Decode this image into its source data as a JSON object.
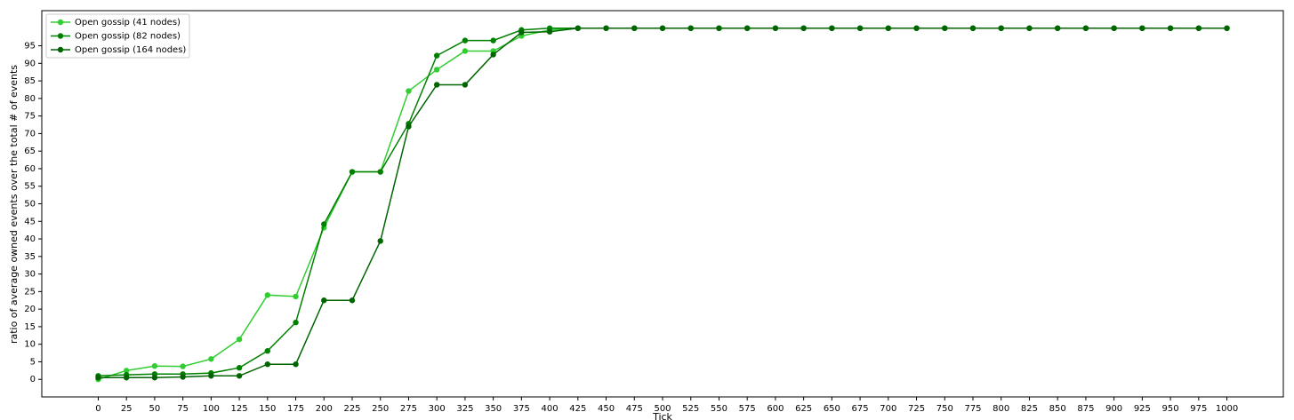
{
  "chart_data": {
    "type": "line",
    "x_label": "Tick",
    "y_label": "ratio of average owned events over the total # of events",
    "x": [
      0,
      25,
      50,
      75,
      100,
      125,
      150,
      175,
      200,
      225,
      250,
      275,
      300,
      325,
      350,
      375,
      400,
      425,
      450,
      475,
      500,
      525,
      550,
      575,
      600,
      625,
      650,
      675,
      700,
      725,
      750,
      775,
      800,
      825,
      850,
      875,
      900,
      925,
      950,
      975,
      1000
    ],
    "series": [
      {
        "name": "Open gossip (41 nodes)",
        "color": "#32cd32",
        "values": [
          0,
          2.5,
          3.8,
          3.7,
          5.8,
          11.4,
          24,
          23.6,
          43.2,
          59.1,
          59.1,
          82.1,
          88.2,
          93.5,
          93.5,
          97.8,
          99.5,
          100,
          100,
          100,
          100,
          100,
          100,
          100,
          100,
          100,
          100,
          100,
          100,
          100,
          100,
          100,
          100,
          100,
          100,
          100,
          100,
          100,
          100,
          100,
          100
        ]
      },
      {
        "name": "Open gossip (82 nodes)",
        "color": "#008000",
        "values": [
          1,
          1.3,
          1.5,
          1.5,
          1.8,
          3.3,
          8.1,
          16.2,
          44.2,
          59.1,
          59.1,
          72.8,
          92.2,
          96.5,
          96.5,
          99.5,
          100,
          100,
          100,
          100,
          100,
          100,
          100,
          100,
          100,
          100,
          100,
          100,
          100,
          100,
          100,
          100,
          100,
          100,
          100,
          100,
          100,
          100,
          100,
          100,
          100
        ]
      },
      {
        "name": "Open gossip (164 nodes)",
        "color": "#006400",
        "values": [
          0.5,
          0.5,
          0.5,
          0.7,
          1,
          1,
          4.3,
          4.3,
          22.5,
          22.5,
          39.4,
          72,
          83.9,
          83.9,
          92.5,
          98.8,
          99,
          100,
          100,
          100,
          100,
          100,
          100,
          100,
          100,
          100,
          100,
          100,
          100,
          100,
          100,
          100,
          100,
          100,
          100,
          100,
          100,
          100,
          100,
          100,
          100
        ]
      }
    ],
    "xlim": [
      -50,
      1050
    ],
    "ylim": [
      -5,
      105
    ],
    "xticks": [
      0,
      25,
      50,
      75,
      100,
      125,
      150,
      175,
      200,
      225,
      250,
      275,
      300,
      325,
      350,
      375,
      400,
      425,
      450,
      475,
      500,
      525,
      550,
      575,
      600,
      625,
      650,
      675,
      700,
      725,
      750,
      775,
      800,
      825,
      850,
      875,
      900,
      925,
      950,
      975,
      1000
    ],
    "yticks": [
      0,
      5,
      10,
      15,
      20,
      25,
      30,
      35,
      40,
      45,
      50,
      55,
      60,
      65,
      70,
      75,
      80,
      85,
      90,
      95
    ],
    "legend": "upper left",
    "markers": true
  }
}
